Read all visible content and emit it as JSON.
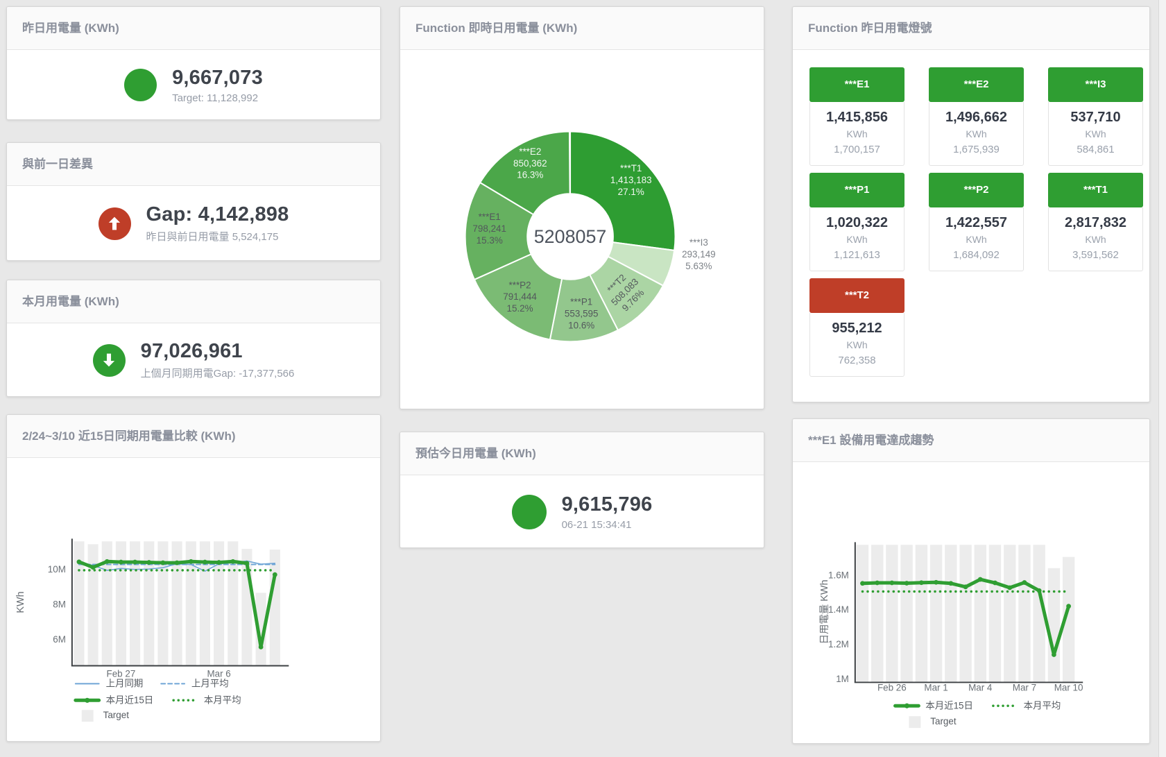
{
  "background": "#e8e8e8",
  "colors": {
    "green": "#2f9e32",
    "red": "#bf3e28",
    "blue": "#6fa5d6",
    "bar_fill": "#ececec",
    "title_text": "#8a8f9b",
    "value_text": "#3f444c",
    "subtitle_text": "#969ca7",
    "axis_text": "#6a7076",
    "legend_text": "#565b61"
  },
  "stat_panels": {
    "yesterday": {
      "title": "昨日用電量 (KWh)",
      "value": "9,667,073",
      "subtitle": "Target: 11,128,992",
      "icon": "circle",
      "status": "green"
    },
    "gap": {
      "title": "與前一日差異",
      "value": "Gap: 4,142,898",
      "subtitle": "昨日與前日用電量 5,524,175",
      "icon": "arrow-up",
      "status": "red"
    },
    "month": {
      "title": "本月用電量 (KWh)",
      "value": "97,026,961",
      "subtitle": "上個月同期用電Gap: -17,377,566",
      "icon": "arrow-down",
      "status": "green"
    },
    "estimate": {
      "title": "預估今日用電量 (KWh)",
      "value": "9,615,796",
      "subtitle": "06-21 15:34:41",
      "icon": "circle",
      "status": "green"
    }
  },
  "lamps": {
    "title": "Function 昨日用電燈號",
    "tiles": [
      {
        "name": "***E1",
        "value": "1,415,856",
        "unit": "KWh",
        "target": "1,700,157",
        "status": "green"
      },
      {
        "name": "***E2",
        "value": "1,496,662",
        "unit": "KWh",
        "target": "1,675,939",
        "status": "green"
      },
      {
        "name": "***I3",
        "value": "537,710",
        "unit": "KWh",
        "target": "584,861",
        "status": "green"
      },
      {
        "name": "***P1",
        "value": "1,020,322",
        "unit": "KWh",
        "target": "1,121,613",
        "status": "green"
      },
      {
        "name": "***P2",
        "value": "1,422,557",
        "unit": "KWh",
        "target": "1,684,092",
        "status": "green"
      },
      {
        "name": "***T1",
        "value": "2,817,832",
        "unit": "KWh",
        "target": "3,591,562",
        "status": "green"
      },
      {
        "name": "***T2",
        "value": "955,212",
        "unit": "KWh",
        "target": "762,358",
        "status": "red"
      }
    ]
  },
  "chart_data": [
    {
      "id": "function-realtime-donut",
      "type": "pie",
      "title": "Function 即時日用電量 (KWh)",
      "center_total": "5208057",
      "slices": [
        {
          "name": "***T1",
          "value": "1,413,183",
          "pct": "27.1%",
          "share": 27.1,
          "color": "#2e9d32",
          "label_style": "light"
        },
        {
          "name": "***I3",
          "value": "293,149",
          "pct": "5.63%",
          "share": 5.63,
          "color": "#c9e5c3",
          "label_style": "outside"
        },
        {
          "name": "***T2",
          "value": "508,083",
          "pct": "9.76%",
          "share": 9.76,
          "color": "#abd5a4",
          "label_style": "dark",
          "label_rotated": true
        },
        {
          "name": "***P1",
          "value": "553,595",
          "pct": "10.6%",
          "share": 10.6,
          "color": "#93c78d",
          "label_style": "dark"
        },
        {
          "name": "***P2",
          "value": "791,444",
          "pct": "15.2%",
          "share": 15.2,
          "color": "#7bbb74",
          "label_style": "dark"
        },
        {
          "name": "***E1",
          "value": "798,241",
          "pct": "15.3%",
          "share": 15.3,
          "color": "#66b160",
          "label_style": "dark"
        },
        {
          "name": "***E2",
          "value": "850,362",
          "pct": "16.3%",
          "share": 16.3,
          "color": "#4ba749",
          "label_style": "light"
        }
      ]
    },
    {
      "id": "compare-15day",
      "type": "line",
      "title": "2/24~3/10 近15日同期用電量比較 (KWh)",
      "ylabel": "KWh",
      "categories": [
        "2/24",
        "2/25",
        "2/26",
        "2/27",
        "2/28",
        "3/1",
        "3/2",
        "3/3",
        "3/4",
        "3/5",
        "3/6",
        "3/7",
        "3/8",
        "3/9",
        "3/10"
      ],
      "xticks": [
        {
          "index": 3,
          "label": "Feb 27"
        },
        {
          "index": 10,
          "label": "Mar 6"
        }
      ],
      "ylim": [
        4500000,
        11750000
      ],
      "yticks": [
        {
          "value": 6000000,
          "label": "6M"
        },
        {
          "value": 8000000,
          "label": "8M"
        },
        {
          "value": 10000000,
          "label": "10M"
        }
      ],
      "grid": false,
      "legend_position": "bottom",
      "series": [
        {
          "name": "Target",
          "type": "bar",
          "color": "#ececec",
          "values": [
            11600000,
            11440000,
            11600000,
            11600000,
            11600000,
            11600000,
            11600000,
            11600000,
            11600000,
            11600000,
            11600000,
            11600000,
            11170000,
            8660000,
            11130000
          ]
        },
        {
          "name": "上月同期",
          "type": "line",
          "style": "solid",
          "color": "#6fa5d6",
          "width": 1.6,
          "values": [
            10450000,
            10220000,
            9950000,
            10050000,
            10000000,
            10020000,
            10100000,
            10320000,
            10280000,
            9900000,
            10320000,
            10380000,
            10480000,
            10300000,
            10350000
          ]
        },
        {
          "name": "上月平均",
          "type": "line",
          "style": "dashed",
          "color": "#6fa5d6",
          "width": 2,
          "values": [
            10280000
          ]
        },
        {
          "name": "本月近15日",
          "type": "line",
          "style": "solid",
          "color": "#2f9e32",
          "width": 5,
          "markers": true,
          "values": [
            10430000,
            10120000,
            10450000,
            10420000,
            10420000,
            10400000,
            10380000,
            10380000,
            10450000,
            10420000,
            10400000,
            10450000,
            10350000,
            5570000,
            9700000
          ]
        },
        {
          "name": "本月平均",
          "type": "line",
          "style": "dotted",
          "color": "#2f9e32",
          "width": 3.5,
          "values": [
            9950000
          ]
        }
      ]
    },
    {
      "id": "e1-trend",
      "type": "line",
      "title": "***E1 設備用電達成趨勢",
      "ylabel": "日用電量 KWh",
      "categories": [
        "2/24",
        "2/25",
        "2/26",
        "2/27",
        "2/28",
        "3/1",
        "3/2",
        "3/3",
        "3/4",
        "3/5",
        "3/6",
        "3/7",
        "3/8",
        "3/9",
        "3/10"
      ],
      "xticks": [
        {
          "index": 2,
          "label": "Feb 26"
        },
        {
          "index": 5,
          "label": "Mar 1"
        },
        {
          "index": 8,
          "label": "Mar 4"
        },
        {
          "index": 11,
          "label": "Mar 7"
        },
        {
          "index": 14,
          "label": "Mar 10"
        }
      ],
      "ylim": [
        980000,
        1790000
      ],
      "yticks": [
        {
          "value": 1000000,
          "label": "1M"
        },
        {
          "value": 1200000,
          "label": "1.2M"
        },
        {
          "value": 1400000,
          "label": "1.4M"
        },
        {
          "value": 1600000,
          "label": "1.6M"
        }
      ],
      "grid": false,
      "legend_position": "bottom",
      "series": [
        {
          "name": "Target",
          "type": "bar",
          "color": "#ececec",
          "values": [
            1775000,
            1775000,
            1775000,
            1775000,
            1775000,
            1775000,
            1775000,
            1775000,
            1775000,
            1775000,
            1775000,
            1775000,
            1775000,
            1640000,
            1705000
          ]
        },
        {
          "name": "本月近15日",
          "type": "line",
          "style": "solid",
          "color": "#2f9e32",
          "width": 5,
          "markers": true,
          "values": [
            1552000,
            1555000,
            1555000,
            1553000,
            1556000,
            1558000,
            1552000,
            1532000,
            1575000,
            1555000,
            1527000,
            1557000,
            1510000,
            1140000,
            1420000
          ]
        },
        {
          "name": "本月平均",
          "type": "line",
          "style": "dotted",
          "color": "#2f9e32",
          "width": 3.5,
          "values": [
            1505000
          ]
        }
      ]
    }
  ]
}
